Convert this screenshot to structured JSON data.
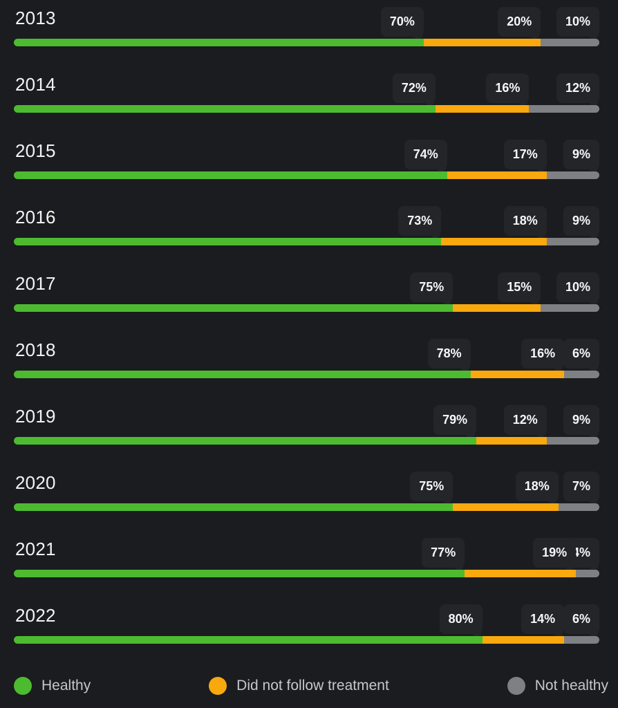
{
  "chart_data": {
    "type": "bar",
    "variant": "horizontal-stacked",
    "categories": [
      "2013",
      "2014",
      "2015",
      "2016",
      "2017",
      "2018",
      "2019",
      "2020",
      "2021",
      "2022"
    ],
    "series": [
      {
        "name": "Healthy",
        "color": "#4dbb30",
        "values": [
          70,
          72,
          74,
          73,
          75,
          78,
          79,
          75,
          77,
          80
        ]
      },
      {
        "name": "Did not follow treatment",
        "color": "#f9a80e",
        "values": [
          20,
          16,
          17,
          18,
          15,
          16,
          12,
          18,
          19,
          14
        ]
      },
      {
        "name": "Not healthy",
        "color": "#7f8083",
        "values": [
          10,
          12,
          9,
          9,
          10,
          6,
          9,
          7,
          4,
          6
        ]
      }
    ],
    "value_suffix": "%",
    "xlim": [
      0,
      100
    ],
    "legend_position": "bottom",
    "legend_labels": [
      "Healthy",
      "Did not follow treatment",
      "Not healthy"
    ],
    "theme": {
      "background": "#1b1c1f",
      "label_box": "#242529",
      "label_text": "#f7f7f8",
      "year_text": "#f3f3f4",
      "legend_text": "#c6c7c9"
    }
  }
}
